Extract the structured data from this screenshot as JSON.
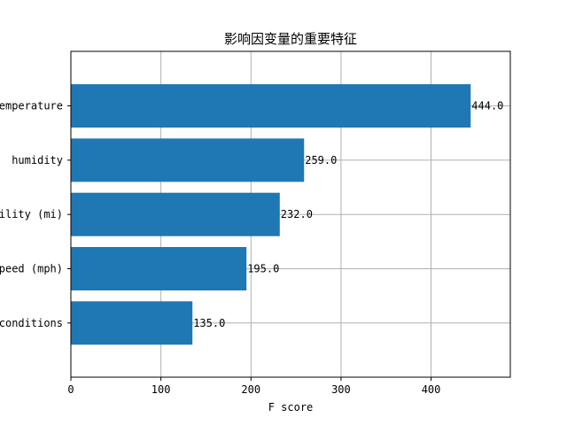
{
  "chart_data": {
    "type": "bar",
    "orientation": "horizontal",
    "title": "影响因变量的重要特征",
    "xlabel": "F score",
    "ylabel": "",
    "categories": [
      "emperature",
      "humidity",
      "ility (mi)",
      "peed (mph)",
      "conditions"
    ],
    "values": [
      444.0,
      259.0,
      232.0,
      195.0,
      135.0
    ],
    "data_labels": [
      "444.0",
      "259.0",
      "232.0",
      "195.0",
      "135.0"
    ],
    "xlim": [
      0,
      488
    ],
    "xticks": [
      0,
      100,
      200,
      300,
      400
    ],
    "xtick_labels": [
      "0",
      "100",
      "200",
      "300",
      "400"
    ],
    "grid": true,
    "bar_color": "#1f77b4",
    "grid_color": "#b0b0b0"
  }
}
